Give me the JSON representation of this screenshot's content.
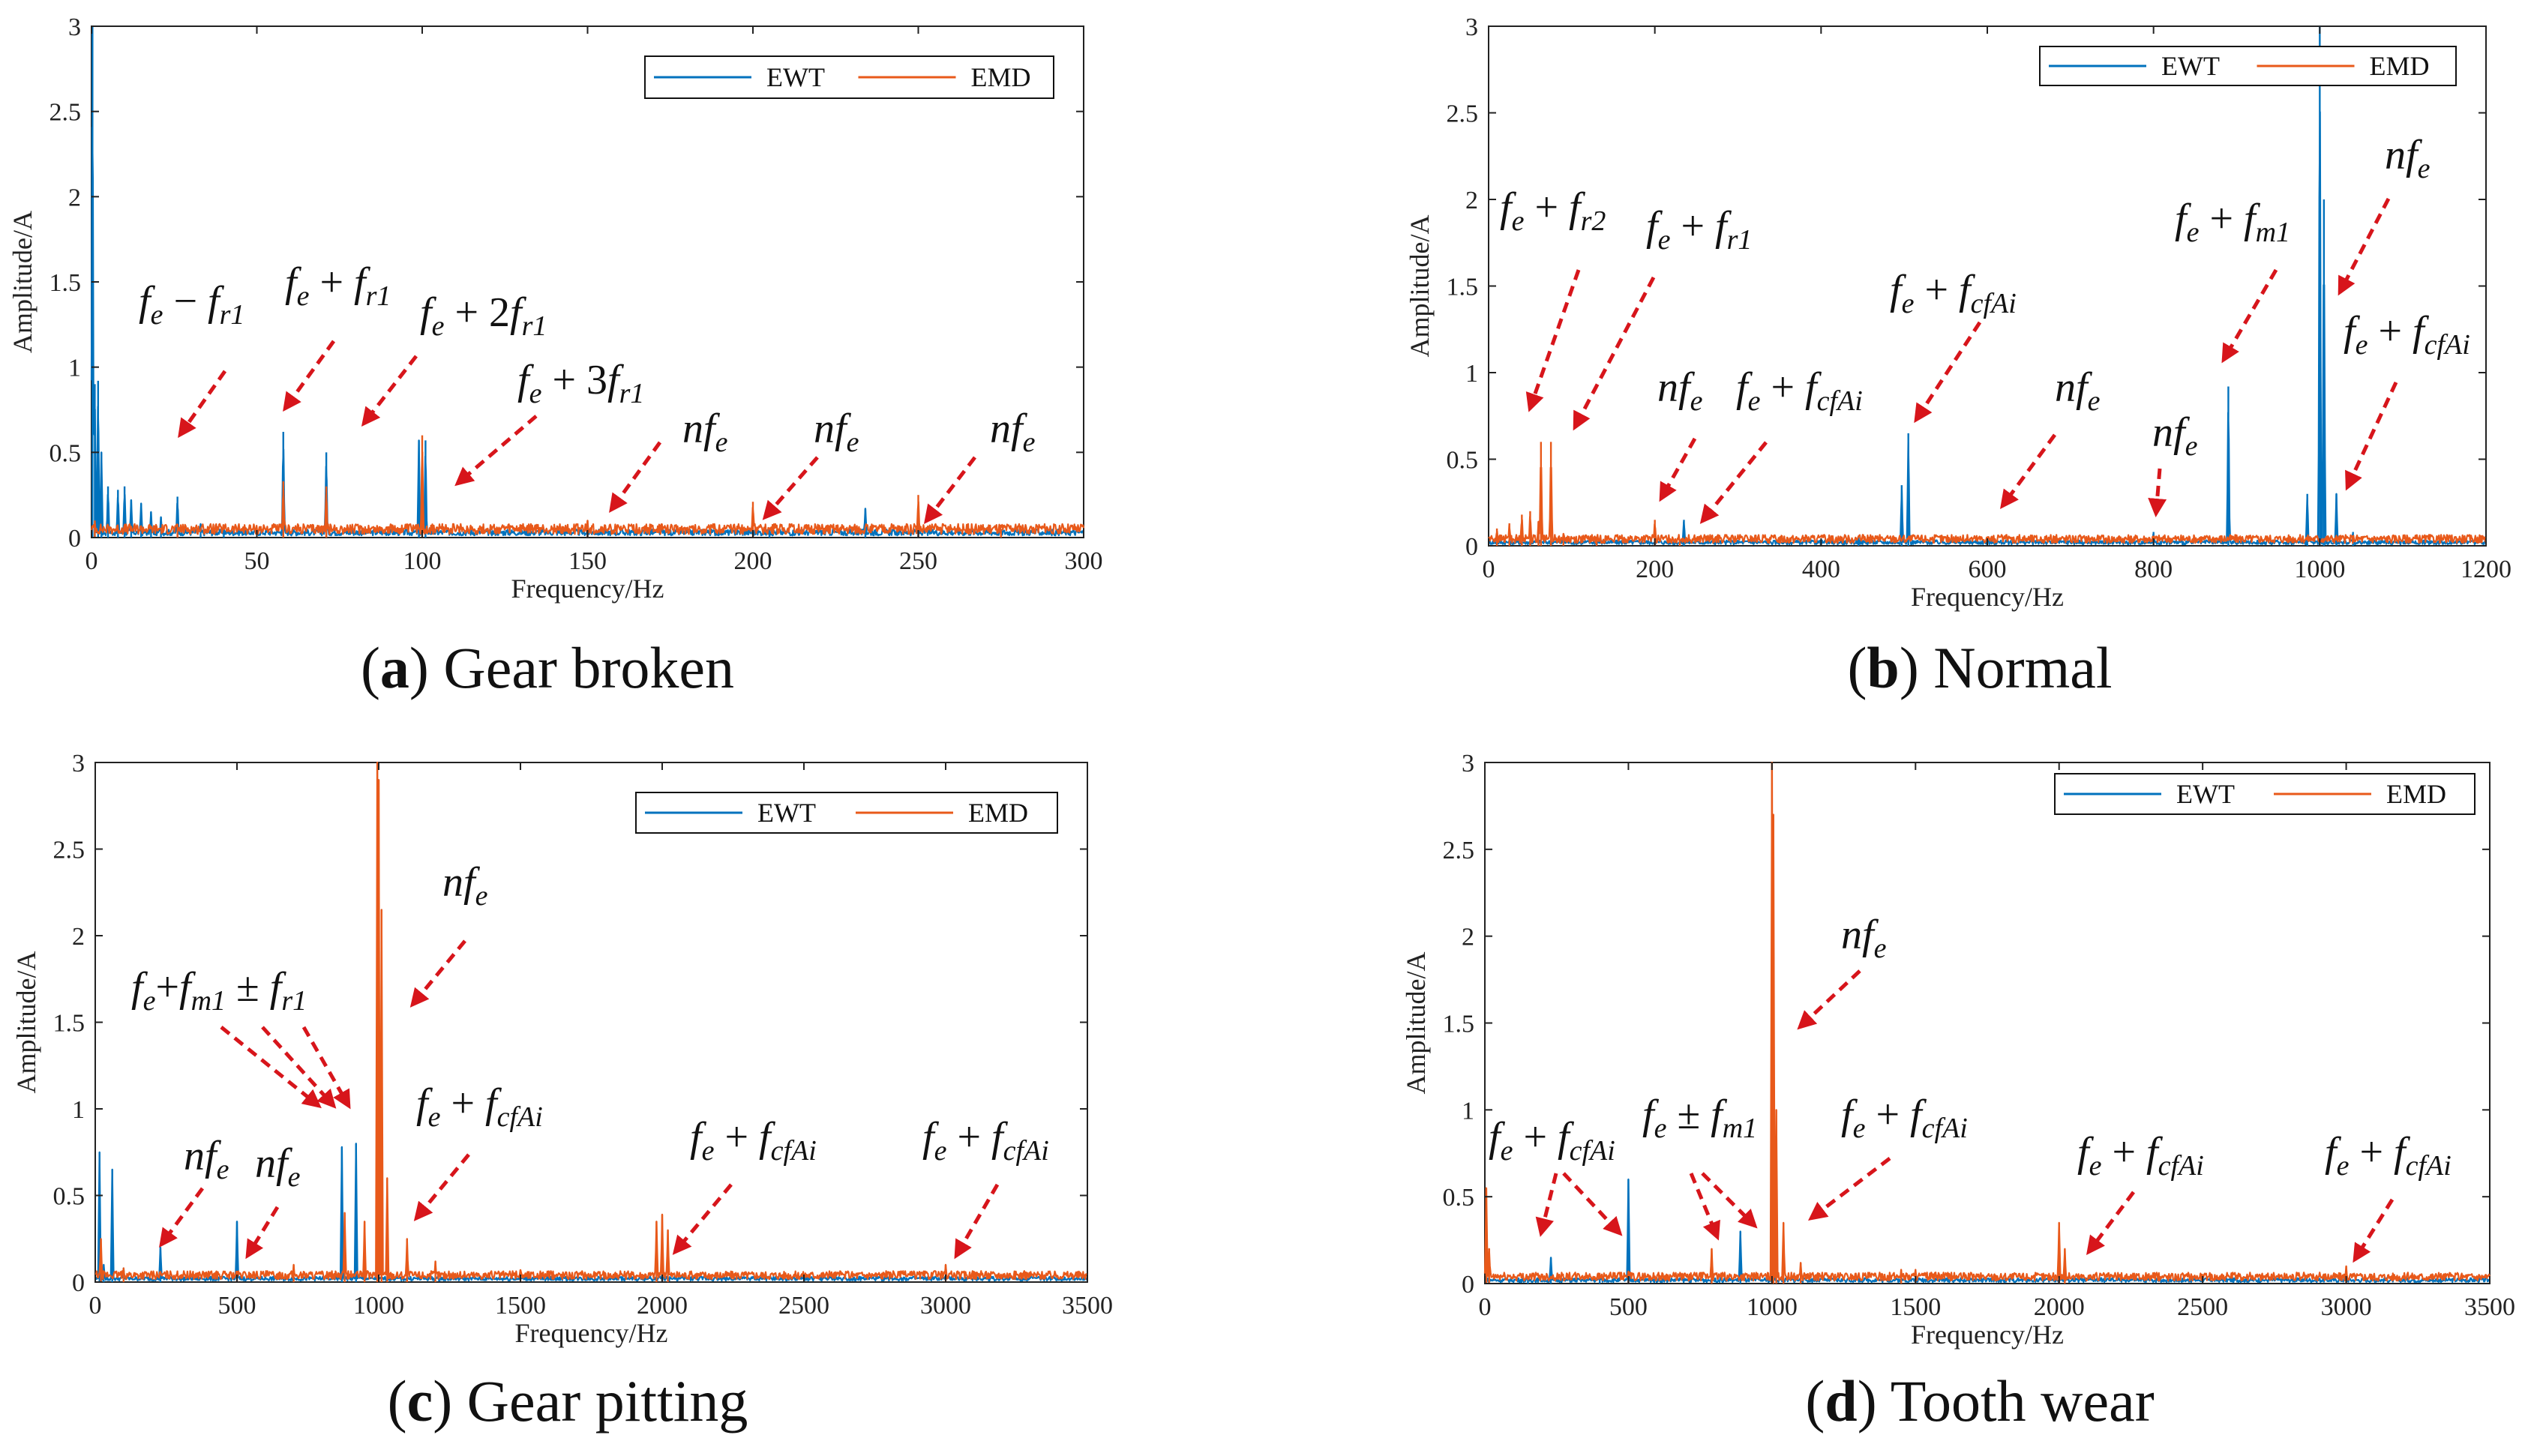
{
  "figure_title": "",
  "colors": {
    "ewt": "#0072BD",
    "emd": "#E8591A",
    "arrow": "#D7151B",
    "axis": "#222222"
  },
  "chart_data": [
    {
      "id": "a",
      "type": "line",
      "caption": {
        "letter": "a",
        "text": " Gear broken"
      },
      "xlabel": "Frequency/Hz",
      "ylabel": "Amplitude/A",
      "xlim": [
        0,
        300
      ],
      "ylim": [
        0,
        3
      ],
      "xticks": [
        "0",
        "50",
        "100",
        "150",
        "200",
        "250",
        "300"
      ],
      "yticks": [
        "0",
        "0.5",
        "1",
        "1.5",
        "2",
        "2.5",
        "3"
      ],
      "legend": {
        "position": "top-right",
        "entries": [
          "EWT",
          "EMD"
        ]
      },
      "series": [
        {
          "name": "EWT",
          "color": "#0072BD",
          "baseline": 0.03,
          "peaks": [
            [
              0.3,
              3.0
            ],
            [
              1,
              0.9
            ],
            [
              2,
              0.92
            ],
            [
              3,
              0.5
            ],
            [
              5,
              0.3
            ],
            [
              8,
              0.28
            ],
            [
              10,
              0.3
            ],
            [
              12,
              0.22
            ],
            [
              15,
              0.2
            ],
            [
              18,
              0.15
            ],
            [
              21,
              0.12
            ],
            [
              26,
              0.24
            ],
            [
              33,
              0.08
            ],
            [
              40,
              0.06
            ],
            [
              58,
              0.62
            ],
            [
              71,
              0.5
            ],
            [
              99,
              0.57
            ],
            [
              101,
              0.57
            ],
            [
              150,
              0.04
            ],
            [
              205,
              0.05
            ],
            [
              234,
              0.17
            ],
            [
              250,
              0.04
            ]
          ]
        },
        {
          "name": "EMD",
          "color": "#E8591A",
          "baseline": 0.05,
          "peaks": [
            [
              1,
              0.1
            ],
            [
              26,
              0.08
            ],
            [
              58,
              0.33
            ],
            [
              71,
              0.3
            ],
            [
              100,
              0.6
            ],
            [
              150,
              0.1
            ],
            [
              200,
              0.21
            ],
            [
              250,
              0.25
            ],
            [
              275,
              0.05
            ]
          ]
        }
      ],
      "annotations": [
        {
          "html": "f<tspan class='sub' dy='12'>e</tspan><tspan dy='-12' class='op'> − </tspan>f<tspan class='sub' dy='12'>r1</tspan>"
        },
        {
          "html": "f<tspan class='sub' dy='12'>e</tspan><tspan dy='-12' class='op'> + </tspan>f<tspan class='sub' dy='12'>r1</tspan>"
        },
        {
          "html": "f<tspan class='sub' dy='12'>e</tspan><tspan dy='-12' class='op'> + 2</tspan>f<tspan class='sub' dy='12'>r1</tspan>"
        },
        {
          "html": "f<tspan class='sub' dy='12'>e</tspan><tspan dy='-12' class='op'> + 3</tspan>f<tspan class='sub' dy='12'>r1</tspan>"
        },
        {
          "html": "nf<tspan class='sub' dy='12'>e</tspan>"
        },
        {
          "html": "nf<tspan class='sub' dy='12'>e</tspan>"
        },
        {
          "html": "nf<tspan class='sub' dy='12'>e</tspan>"
        }
      ]
    },
    {
      "id": "b",
      "type": "line",
      "caption": {
        "letter": "b",
        "text": " Normal"
      },
      "xlabel": "Frequency/Hz",
      "ylabel": "Amplitude/A",
      "xlim": [
        0,
        1200
      ],
      "ylim": [
        0,
        3
      ],
      "xticks": [
        "0",
        "200",
        "400",
        "600",
        "800",
        "1000",
        "1200"
      ],
      "yticks": [
        "0",
        "0.5",
        "1",
        "1.5",
        "2",
        "2.5",
        "3"
      ],
      "legend": {
        "position": "top-right",
        "entries": [
          "EWT",
          "EMD"
        ]
      },
      "series": [
        {
          "name": "EWT",
          "color": "#0072BD",
          "baseline": 0.02,
          "peaks": [
            [
              235,
              0.15
            ],
            [
              445,
              0.05
            ],
            [
              497,
              0.35
            ],
            [
              505,
              0.65
            ],
            [
              600,
              0.04
            ],
            [
              800,
              0.08
            ],
            [
              890,
              0.92
            ],
            [
              985,
              0.3
            ],
            [
              1000,
              3.0
            ],
            [
              1005,
              2.0
            ],
            [
              1020,
              0.3
            ],
            [
              1040,
              0.08
            ]
          ]
        },
        {
          "name": "EMD",
          "color": "#E8591A",
          "baseline": 0.04,
          "peaks": [
            [
              10,
              0.1
            ],
            [
              25,
              0.13
            ],
            [
              40,
              0.18
            ],
            [
              50,
              0.2
            ],
            [
              60,
              0.14
            ],
            [
              63,
              0.6
            ],
            [
              75,
              0.6
            ],
            [
              90,
              0.07
            ],
            [
              130,
              0.05
            ],
            [
              200,
              0.15
            ],
            [
              230,
              0.03
            ]
          ]
        }
      ],
      "annotations": [
        {
          "html": "f<tspan class='sub' dy='12'>e</tspan><tspan dy='-12' class='op'> + </tspan>f<tspan class='sub' dy='12'>r2</tspan>"
        },
        {
          "html": "f<tspan class='sub' dy='12'>e</tspan><tspan dy='-12' class='op'> + </tspan>f<tspan class='sub' dy='12'>r1</tspan>"
        },
        {
          "html": "nf<tspan class='sub' dy='12'>e</tspan>"
        },
        {
          "html": "f<tspan class='sub' dy='12'>e</tspan><tspan dy='-12' class='op'> + </tspan>f<tspan class='sub' dy='12'>cfAi</tspan>"
        },
        {
          "html": "f<tspan class='sub' dy='12'>e</tspan><tspan dy='-12' class='op'> + </tspan>f<tspan class='sub' dy='12'>cfAi</tspan>"
        },
        {
          "html": "nf<tspan class='sub' dy='12'>e</tspan>"
        },
        {
          "html": "nf<tspan class='sub' dy='12'>e</tspan>"
        },
        {
          "html": "f<tspan class='sub' dy='12'>e</tspan><tspan dy='-12' class='op'> + </tspan>f<tspan class='sub' dy='12'>m1</tspan>"
        },
        {
          "html": "nf<tspan class='sub' dy='12'>e</tspan>"
        },
        {
          "html": "f<tspan class='sub' dy='12'>e</tspan><tspan dy='-12' class='op'> + </tspan>f<tspan class='sub' dy='12'>cfAi</tspan>"
        }
      ]
    },
    {
      "id": "c",
      "type": "line",
      "caption": {
        "letter": "c",
        "text": " Gear pitting"
      },
      "xlabel": "Frequency/Hz",
      "ylabel": "Amplitude/A",
      "xlim": [
        0,
        3500
      ],
      "ylim": [
        0,
        3
      ],
      "xticks": [
        "0",
        "500",
        "1000",
        "1500",
        "2000",
        "2500",
        "3000",
        "3500"
      ],
      "yticks": [
        "0",
        "0.5",
        "1",
        "1.5",
        "2",
        "2.5",
        "3"
      ],
      "legend": {
        "position": "top-right",
        "entries": [
          "EWT",
          "EMD"
        ]
      },
      "series": [
        {
          "name": "EWT",
          "color": "#0072BD",
          "baseline": 0.02,
          "peaks": [
            [
              15,
              0.75
            ],
            [
              30,
              0.1
            ],
            [
              60,
              0.65
            ],
            [
              100,
              0.08
            ],
            [
              230,
              0.2
            ],
            [
              500,
              0.35
            ],
            [
              870,
              0.78
            ],
            [
              920,
              0.8
            ],
            [
              2000,
              0.04
            ]
          ]
        },
        {
          "name": "EMD",
          "color": "#E8591A",
          "baseline": 0.04,
          "peaks": [
            [
              20,
              0.25
            ],
            [
              100,
              0.08
            ],
            [
              500,
              0.06
            ],
            [
              700,
              0.1
            ],
            [
              880,
              0.4
            ],
            [
              950,
              0.35
            ],
            [
              995,
              3.0
            ],
            [
              1000,
              2.9
            ],
            [
              1010,
              2.15
            ],
            [
              1030,
              0.6
            ],
            [
              1100,
              0.25
            ],
            [
              1200,
              0.12
            ],
            [
              1500,
              0.07
            ],
            [
              1980,
              0.35
            ],
            [
              2000,
              0.39
            ],
            [
              2020,
              0.3
            ],
            [
              3000,
              0.1
            ]
          ]
        }
      ],
      "annotations": [
        {
          "html": "nf<tspan class='sub' dy='12'>e</tspan>"
        },
        {
          "html": "nf<tspan class='sub' dy='12'>e</tspan>"
        },
        {
          "html": "f<tspan class='sub' dy='12'>e</tspan><tspan dy='-12' class='op'>+</tspan>f<tspan class='sub' dy='12'>m1</tspan><tspan dy='-12' class='op'> ± </tspan>f<tspan class='sub' dy='12'>r1</tspan>"
        },
        {
          "html": "nf<tspan class='sub' dy='12'>e</tspan>"
        },
        {
          "html": "f<tspan class='sub' dy='12'>e</tspan><tspan dy='-12' class='op'> + </tspan>f<tspan class='sub' dy='12'>cfAi</tspan>"
        },
        {
          "html": "f<tspan class='sub' dy='12'>e</tspan><tspan dy='-12' class='op'> + </tspan>f<tspan class='sub' dy='12'>cfAi</tspan>"
        },
        {
          "html": "f<tspan class='sub' dy='12'>e</tspan><tspan dy='-12' class='op'> + </tspan>f<tspan class='sub' dy='12'>cfAi</tspan>"
        }
      ]
    },
    {
      "id": "d",
      "type": "line",
      "caption": {
        "letter": "d",
        "text": " Tooth wear"
      },
      "xlabel": "Frequency/Hz",
      "ylabel": "Amplitude/A",
      "xlim": [
        0,
        3500
      ],
      "ylim": [
        0,
        3
      ],
      "xticks": [
        "0",
        "500",
        "1000",
        "1500",
        "2000",
        "2500",
        "3000",
        "3500"
      ],
      "yticks": [
        "0",
        "0.5",
        "1",
        "1.5",
        "2",
        "2.5",
        "3"
      ],
      "legend": {
        "position": "top-right",
        "entries": [
          "EWT",
          "EMD"
        ]
      },
      "series": [
        {
          "name": "EWT",
          "color": "#0072BD",
          "baseline": 0.02,
          "peaks": [
            [
              150,
              0.04
            ],
            [
              230,
              0.15
            ],
            [
              400,
              0.05
            ],
            [
              500,
              0.6
            ],
            [
              890,
              0.3
            ],
            [
              1500,
              0.03
            ]
          ]
        },
        {
          "name": "EMD",
          "color": "#E8591A",
          "baseline": 0.04,
          "peaks": [
            [
              5,
              0.55
            ],
            [
              15,
              0.2
            ],
            [
              500,
              0.07
            ],
            [
              790,
              0.2
            ],
            [
              1000,
              3.0
            ],
            [
              1005,
              2.7
            ],
            [
              1015,
              1.0
            ],
            [
              1040,
              0.35
            ],
            [
              1100,
              0.12
            ],
            [
              1450,
              0.08
            ],
            [
              1500,
              0.08
            ],
            [
              2000,
              0.35
            ],
            [
              2020,
              0.2
            ],
            [
              3000,
              0.1
            ]
          ]
        }
      ],
      "annotations": [
        {
          "html": "f<tspan class='sub' dy='12'>e</tspan><tspan dy='-12' class='op'> + </tspan>f<tspan class='sub' dy='12'>cfAi</tspan>"
        },
        {
          "html": "f<tspan class='sub' dy='12'>e</tspan><tspan dy='-12' class='op'> ± </tspan>f<tspan class='sub' dy='12'>m1</tspan>"
        },
        {
          "html": "nf<tspan class='sub' dy='12'>e</tspan>"
        },
        {
          "html": "f<tspan class='sub' dy='12'>e</tspan><tspan dy='-12' class='op'> + </tspan>f<tspan class='sub' dy='12'>cfAi</tspan>"
        },
        {
          "html": "f<tspan class='sub' dy='12'>e</tspan><tspan dy='-12' class='op'> + </tspan>f<tspan class='sub' dy='12'>cfAi</tspan>"
        },
        {
          "html": "f<tspan class='sub' dy='12'>e</tspan><tspan dy='-12' class='op'> + </tspan>f<tspan class='sub' dy='12'>cfAi</tspan>"
        }
      ]
    }
  ]
}
